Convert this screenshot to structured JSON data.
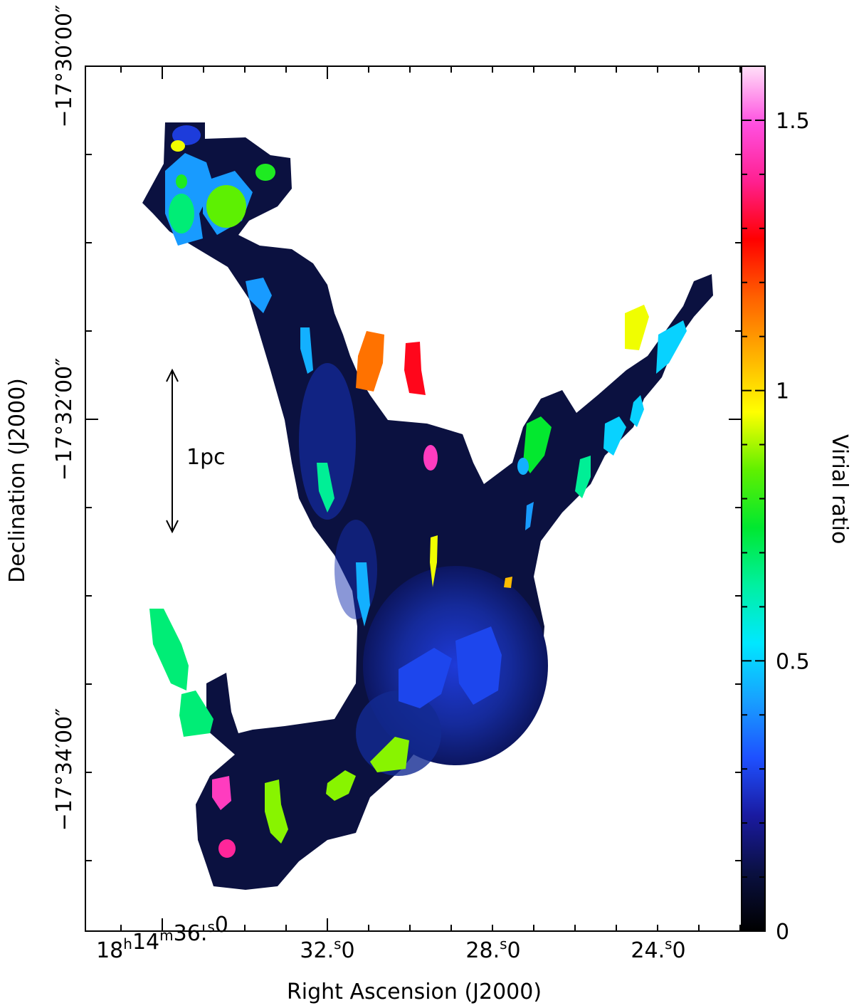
{
  "chart_data": {
    "type": "heatmap",
    "title": "",
    "xlabel": "Right Ascension (J2000)",
    "ylabel": "Declination (J2000)",
    "colorbar_label": "Virial ratio",
    "colorbar": {
      "range": [
        0,
        1.6
      ],
      "ticks": [
        {
          "value": 0,
          "label": "0"
        },
        {
          "value": 0.5,
          "label": "0.5"
        },
        {
          "value": 1,
          "label": "1"
        },
        {
          "value": 1.5,
          "label": "1.5"
        }
      ],
      "colormap": [
        "#000000",
        "#0a1040",
        "#1a1aa0",
        "#1e50ff",
        "#18a0ff",
        "#00e8ff",
        "#00f0a0",
        "#00e830",
        "#60f000",
        "#ffff00",
        "#ffb000",
        "#ff6000",
        "#ff0000",
        "#ff2090",
        "#ff50e0",
        "#ffe0f8"
      ]
    },
    "x_ticks": [
      {
        "h": "18",
        "m": "14",
        "s": "36",
        "frac": "0",
        "full": true
      },
      {
        "s": "32",
        "frac": "0"
      },
      {
        "s": "28",
        "frac": "0"
      },
      {
        "s": "24",
        "frac": "0"
      }
    ],
    "y_ticks": [
      {
        "deg": "−17",
        "min": "30",
        "sec": "00"
      },
      {
        "deg": "−17",
        "min": "32",
        "sec": "00"
      },
      {
        "deg": "−17",
        "min": "34",
        "sec": "00"
      }
    ],
    "scale_bar": {
      "label": "1pc"
    },
    "clumps": [
      {
        "id": "c01",
        "virial_ratio": 0.42
      },
      {
        "id": "c02",
        "virial_ratio": 0.68
      },
      {
        "id": "c03",
        "virial_ratio": 0.42
      },
      {
        "id": "c04",
        "virial_ratio": 0.85
      },
      {
        "id": "c05",
        "virial_ratio": 0.28
      },
      {
        "id": "c06",
        "virial_ratio": 0.78
      },
      {
        "id": "c07",
        "virial_ratio": 0.95
      },
      {
        "id": "c08",
        "virial_ratio": 0.78
      },
      {
        "id": "c09",
        "virial_ratio": 0.42
      },
      {
        "id": "c10",
        "virial_ratio": 1.15
      },
      {
        "id": "c11",
        "virial_ratio": 1.3
      },
      {
        "id": "c12",
        "virial_ratio": 1.45
      },
      {
        "id": "c13",
        "virial_ratio": 0.95
      },
      {
        "id": "c14",
        "virial_ratio": 1.05
      },
      {
        "id": "c15",
        "virial_ratio": 0.3
      },
      {
        "id": "c16",
        "virial_ratio": 0.3
      },
      {
        "id": "c17",
        "virial_ratio": 0.88
      },
      {
        "id": "c18",
        "virial_ratio": 0.88
      },
      {
        "id": "c19",
        "virial_ratio": 0.88
      },
      {
        "id": "c20",
        "virial_ratio": 1.45
      },
      {
        "id": "c21",
        "virial_ratio": 1.4
      },
      {
        "id": "c22",
        "virial_ratio": 0.68
      },
      {
        "id": "c23",
        "virial_ratio": 0.68
      },
      {
        "id": "c24",
        "virial_ratio": 0.75
      },
      {
        "id": "c25",
        "virial_ratio": 0.45
      },
      {
        "id": "c26",
        "virial_ratio": 0.65
      },
      {
        "id": "c27",
        "virial_ratio": 0.42
      },
      {
        "id": "c28",
        "virial_ratio": 0.5
      },
      {
        "id": "c29",
        "virial_ratio": 0.5
      },
      {
        "id": "c30",
        "virial_ratio": 0.5
      },
      {
        "id": "c31",
        "virial_ratio": 0.95
      },
      {
        "id": "c32",
        "virial_ratio": 0.45
      },
      {
        "id": "c33",
        "virial_ratio": 0.65
      },
      {
        "id": "c34",
        "virial_ratio": 0.45
      }
    ]
  }
}
